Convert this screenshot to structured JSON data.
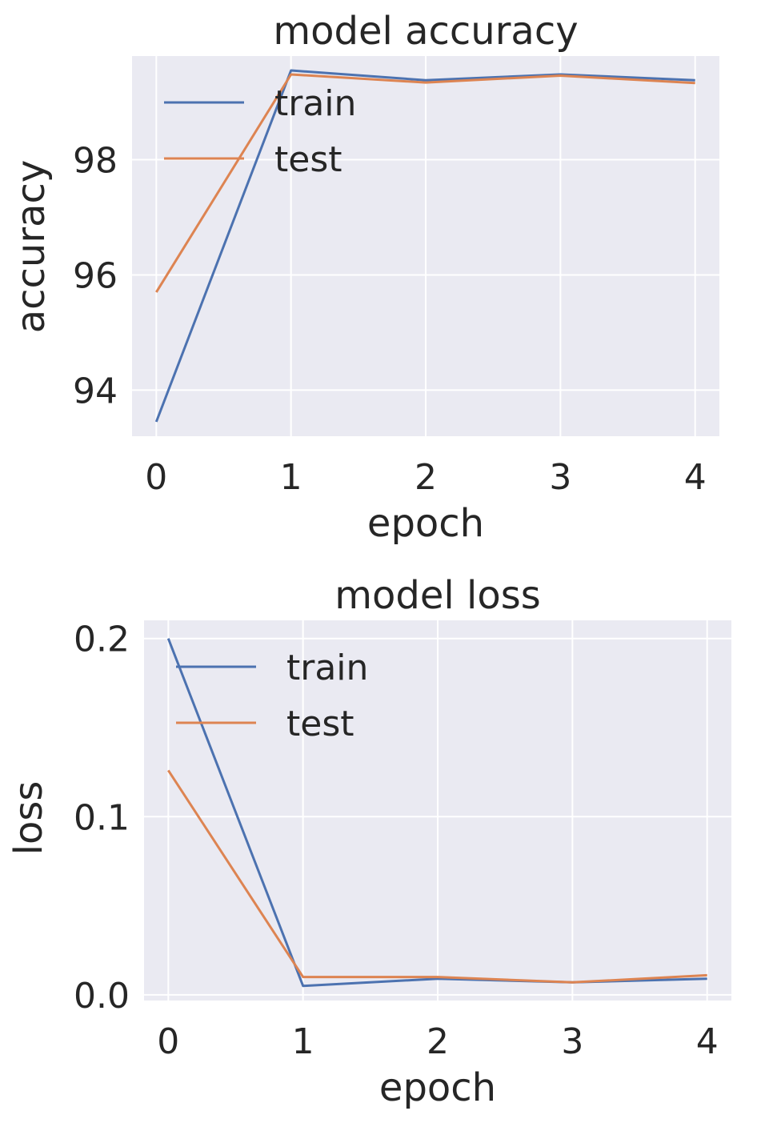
{
  "colors": {
    "train": "#4c72b0",
    "test": "#dd8452",
    "background": "#eaeaf2",
    "grid": "#ffffff"
  },
  "chart_data": [
    {
      "type": "line",
      "title": "model accuracy",
      "xlabel": "epoch",
      "ylabel": "accuracy",
      "x": [
        0,
        1,
        2,
        3,
        4
      ],
      "xticks": [
        "0",
        "1",
        "2",
        "3",
        "4"
      ],
      "yticks": [
        94,
        96,
        98
      ],
      "xlim": [
        -0.18,
        4.18
      ],
      "ylim": [
        93.2,
        99.8
      ],
      "grid": true,
      "legend": "upper left",
      "series": [
        {
          "name": "train",
          "color": "#4c72b0",
          "values": [
            93.45,
            99.55,
            99.38,
            99.48,
            99.38
          ]
        },
        {
          "name": "test",
          "color": "#dd8452",
          "values": [
            95.7,
            99.48,
            99.34,
            99.46,
            99.33
          ]
        }
      ]
    },
    {
      "type": "line",
      "title": "model loss",
      "xlabel": "epoch",
      "ylabel": "loss",
      "x": [
        0,
        1,
        2,
        3,
        4
      ],
      "xticks": [
        "0",
        "1",
        "2",
        "3",
        "4"
      ],
      "yticks": [
        "0.0",
        "0.1",
        "0.2"
      ],
      "xlim": [
        -0.18,
        4.18
      ],
      "ylim": [
        -0.0032,
        0.2102
      ],
      "grid": true,
      "legend": "upper left",
      "series": [
        {
          "name": "train",
          "color": "#4c72b0",
          "values": [
            0.2,
            0.005,
            0.009,
            0.007,
            0.009
          ]
        },
        {
          "name": "test",
          "color": "#dd8452",
          "values": [
            0.126,
            0.01,
            0.01,
            0.007,
            0.011
          ]
        }
      ]
    }
  ]
}
